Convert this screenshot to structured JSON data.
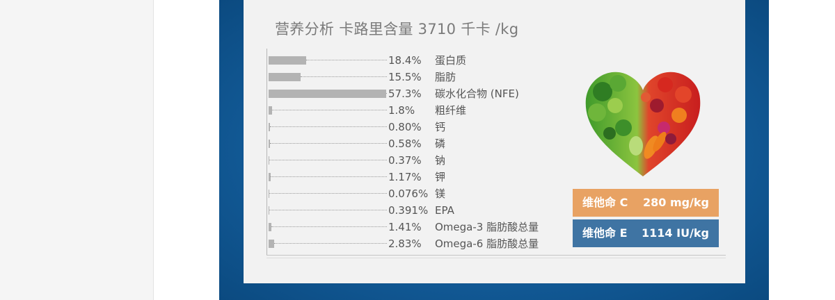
{
  "chart_data": {
    "type": "bar",
    "orientation": "horizontal",
    "title": "营养分析 卡路里含量 3710 千卡 /kg",
    "categories": [
      "蛋白质",
      "脂肪",
      "碳水化合物 (NFE)",
      "粗纤维",
      "钙",
      "磷",
      "钠",
      "钾",
      "镁",
      "EPA",
      "Omega-3 脂肪酸总量",
      "Omega-6 脂肪酸总量"
    ],
    "value_labels": [
      "18.4%",
      "15.5%",
      "57.3%",
      "1.8%",
      "0.80%",
      "0.58%",
      "0.37%",
      "1.17%",
      "0.076%",
      "0.391%",
      "1.41%",
      "2.83%"
    ],
    "values": [
      18.4,
      15.5,
      57.3,
      1.8,
      0.8,
      0.58,
      0.37,
      1.17,
      0.076,
      0.391,
      1.41,
      2.83
    ],
    "unit": "%",
    "bar_color": "#b3b3b3",
    "grid": false,
    "legend": "none"
  },
  "title": {
    "part1": "营养分析",
    "part2": "卡路里含量 3710 千卡 /kg"
  },
  "vitamins": [
    {
      "name": "维他命 C",
      "value": "280 mg/kg",
      "color": "#e8a263"
    },
    {
      "name": "维他命 E",
      "value": "1114 IU/kg",
      "color": "#3f74a3"
    }
  ],
  "image": {
    "icon": "vegetable-heart-icon"
  }
}
